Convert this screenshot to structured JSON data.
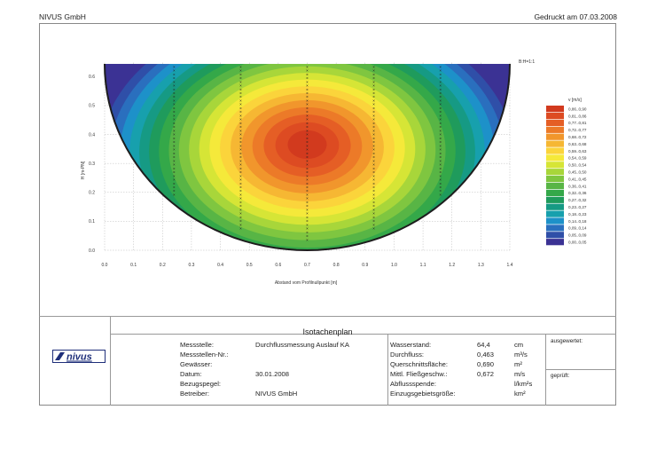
{
  "header": {
    "company": "NIVUS GmbH",
    "printed": "Gedruckt am 07.03.2008"
  },
  "chart_data": {
    "type": "heatmap",
    "title": "",
    "xlabel": "Abstand vom Profilnullpunkt [m]",
    "ylabel": "H [m-PN]",
    "scale_note": "B:H=1:1",
    "xlim": [
      0.0,
      1.4
    ],
    "ylim": [
      0.0,
      0.65
    ],
    "x_ticks": [
      "0.0",
      "0.1",
      "0.2",
      "0.3",
      "0.4",
      "0.5",
      "0.6",
      "0.7",
      "0.8",
      "0.9",
      "1.0",
      "1.1",
      "1.2",
      "1.3",
      "1.4"
    ],
    "y_ticks": [
      "0.0",
      "0.1",
      "0.2",
      "0.3",
      "0.4",
      "0.5",
      "0.6"
    ],
    "grid": true,
    "legend_title": "v [m/s]",
    "legend_position": "right",
    "legend": [
      {
        "label": "0,86..0,90",
        "color": "#d23a1e"
      },
      {
        "label": "0,81..0,86",
        "color": "#dd4b22"
      },
      {
        "label": "0,77..0,81",
        "color": "#e55e25"
      },
      {
        "label": "0,72..0,77",
        "color": "#ec7a28"
      },
      {
        "label": "0,68..0,72",
        "color": "#f1962c"
      },
      {
        "label": "0,63..0,68",
        "color": "#f6b733"
      },
      {
        "label": "0,59..0,63",
        "color": "#fbd43b"
      },
      {
        "label": "0,54..0,59",
        "color": "#f5e93a"
      },
      {
        "label": "0,50..0,54",
        "color": "#d6e536"
      },
      {
        "label": "0,45..0,50",
        "color": "#a8d63a"
      },
      {
        "label": "0,41..0,45",
        "color": "#7fc640"
      },
      {
        "label": "0,36..0,41",
        "color": "#58b545"
      },
      {
        "label": "0,32..0,36",
        "color": "#34a849"
      },
      {
        "label": "0,27..0,32",
        "color": "#1f9b5c"
      },
      {
        "label": "0,23..0,27",
        "color": "#169a84"
      },
      {
        "label": "0,18..0,23",
        "color": "#17a0ad"
      },
      {
        "label": "0,14..0,18",
        "color": "#1d91c9"
      },
      {
        "label": "0,09..0,14",
        "color": "#2a6fbe"
      },
      {
        "label": "0,05..0,09",
        "color": "#2f4fa8"
      },
      {
        "label": "0,00..0,05",
        "color": "#3b3294"
      }
    ],
    "verticals_x": [
      0.24,
      0.47,
      0.7,
      0.93,
      1.16
    ],
    "contour_levels": [
      0.14,
      0.27,
      0.41,
      0.5,
      0.59,
      0.68,
      0.77,
      0.86
    ],
    "field": {
      "center_x": 0.7,
      "center_y": 0.33
    }
  },
  "footer": {
    "title": "Isotachenplan",
    "logo_text": "nivus",
    "left": [
      {
        "label": "Messstelle:",
        "value": "Durchflussmessung Auslauf KA"
      },
      {
        "label": "Messstellen-Nr.:",
        "value": ""
      },
      {
        "label": "Gewässer:",
        "value": ""
      },
      {
        "label": "Datum:",
        "value": "30.01.2008"
      },
      {
        "label": "Bezugspegel:",
        "value": ""
      },
      {
        "label": "Betreiber:",
        "value": "NIVUS GmbH"
      }
    ],
    "right": [
      {
        "label": "Wasserstand:",
        "value": "64,4",
        "unit": "cm"
      },
      {
        "label": "Durchfluss:",
        "value": "0,463",
        "unit": "m³/s"
      },
      {
        "label": "Querschnittsfläche:",
        "value": "0,690",
        "unit": "m²"
      },
      {
        "label": "Mittl. Fließgeschw.:",
        "value": "0,672",
        "unit": "m/s"
      },
      {
        "label": "Abflussspende:",
        "value": "",
        "unit": "l/km²s"
      },
      {
        "label": "Einzugsgebietsgröße:",
        "value": "",
        "unit": "km²"
      }
    ],
    "signatures": [
      "ausgewertet:",
      "geprüft:"
    ]
  }
}
